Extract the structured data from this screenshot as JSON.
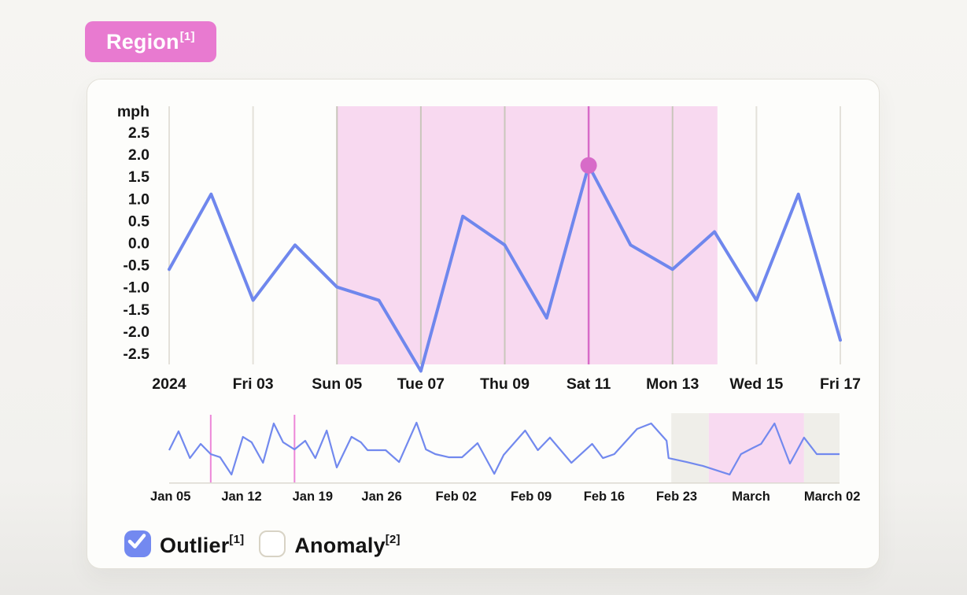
{
  "region_badge": {
    "label": "Region",
    "sup": "[1]",
    "color": "#e87ad0"
  },
  "legend": {
    "outlier": {
      "label": "Outlier",
      "sup": "[1]",
      "checked": true,
      "checkbox_color": "#7389f0"
    },
    "anomaly": {
      "label": "Anomaly",
      "sup": "[2]",
      "checked": false
    }
  },
  "chart_data": [
    {
      "type": "line",
      "role": "main",
      "ylabel": "mph",
      "x_tick_labels": [
        "2024",
        "Fri 03",
        "Sun 05",
        "Tue 07",
        "Thu 09",
        "Sat 11",
        "Mon 13",
        "Wed 15",
        "Fri 17"
      ],
      "x_tick_day_index": [
        0,
        2,
        4,
        6,
        8,
        10,
        12,
        14,
        16
      ],
      "y_ticks": [
        "2.5",
        "2.0",
        "1.5",
        "1.0",
        "0.5",
        "0.0",
        "-0.5",
        "-1.0",
        "-1.5",
        "-2.0",
        "-2.5"
      ],
      "ylim": [
        -2.9,
        3.1
      ],
      "days": 17,
      "values": [
        -0.6,
        1.1,
        -1.3,
        -0.05,
        -1.0,
        -1.3,
        -2.9,
        0.6,
        -0.05,
        -1.7,
        1.75,
        -0.05,
        -0.6,
        0.25,
        -1.3,
        1.1,
        -2.2
      ],
      "line_color": "#6f87ed",
      "grid_color": "#e4e1da",
      "grid_color_in_region": "#c9c6bb",
      "highlight_region": {
        "start_day": 4,
        "end_day": 13.07,
        "color": "#f8d9f0"
      },
      "outlier_marker": {
        "day": 10,
        "value": 1.75,
        "x_label": "Sat 11",
        "color": "#d76bc8"
      }
    },
    {
      "type": "line",
      "role": "overview-brush",
      "x_tick_labels": [
        "Jan 05",
        "Jan 12",
        "Jan 19",
        "Jan 26",
        "Feb 02",
        "Feb 09",
        "Feb 16",
        "Feb 23",
        "March",
        "March 02"
      ],
      "x_tick_pos": [
        0.002,
        0.108,
        0.214,
        0.317,
        0.428,
        0.54,
        0.649,
        0.757,
        0.868,
        0.989
      ],
      "line_color": "#7289ee",
      "baseline_color": "#dcd9d0",
      "bands": [
        {
          "from": 0.749,
          "to": 0.805,
          "color": "#efeee9"
        },
        {
          "from": 0.805,
          "to": 0.947,
          "color": "#f8daf1"
        },
        {
          "from": 0.947,
          "to": 1.0,
          "color": "#efeee9"
        }
      ],
      "event_lines": [
        {
          "pos": 0.062,
          "color": "#ec86d8"
        },
        {
          "pos": 0.187,
          "color": "#ec86d8"
        }
      ],
      "points": [
        [
          0.0,
          0.466
        ],
        [
          0.014,
          0.739
        ],
        [
          0.031,
          0.352
        ],
        [
          0.047,
          0.557
        ],
        [
          0.062,
          0.409
        ],
        [
          0.076,
          0.364
        ],
        [
          0.093,
          0.114
        ],
        [
          0.11,
          0.659
        ],
        [
          0.123,
          0.58
        ],
        [
          0.14,
          0.284
        ],
        [
          0.156,
          0.852
        ],
        [
          0.17,
          0.58
        ],
        [
          0.187,
          0.477
        ],
        [
          0.203,
          0.602
        ],
        [
          0.218,
          0.352
        ],
        [
          0.235,
          0.75
        ],
        [
          0.25,
          0.216
        ],
        [
          0.272,
          0.659
        ],
        [
          0.286,
          0.58
        ],
        [
          0.296,
          0.466
        ],
        [
          0.323,
          0.466
        ],
        [
          0.343,
          0.295
        ],
        [
          0.369,
          0.864
        ],
        [
          0.383,
          0.477
        ],
        [
          0.397,
          0.409
        ],
        [
          0.417,
          0.364
        ],
        [
          0.437,
          0.364
        ],
        [
          0.46,
          0.568
        ],
        [
          0.485,
          0.125
        ],
        [
          0.499,
          0.398
        ],
        [
          0.531,
          0.75
        ],
        [
          0.55,
          0.466
        ],
        [
          0.568,
          0.648
        ],
        [
          0.6,
          0.284
        ],
        [
          0.631,
          0.557
        ],
        [
          0.647,
          0.352
        ],
        [
          0.664,
          0.409
        ],
        [
          0.698,
          0.773
        ],
        [
          0.719,
          0.852
        ],
        [
          0.742,
          0.602
        ],
        [
          0.745,
          0.352
        ],
        [
          0.772,
          0.295
        ],
        [
          0.796,
          0.239
        ],
        [
          0.836,
          0.114
        ],
        [
          0.853,
          0.409
        ],
        [
          0.871,
          0.5
        ],
        [
          0.883,
          0.557
        ],
        [
          0.903,
          0.852
        ],
        [
          0.926,
          0.273
        ],
        [
          0.947,
          0.648
        ],
        [
          0.966,
          0.409
        ],
        [
          1.0,
          0.409
        ]
      ]
    }
  ]
}
